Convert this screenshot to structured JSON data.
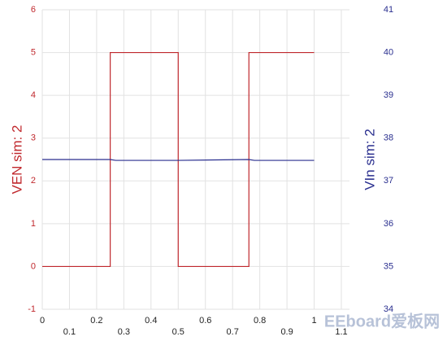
{
  "chart_data": {
    "type": "line",
    "x": [
      0,
      0.25,
      0.25,
      0.5,
      0.5,
      0.76,
      0.76,
      1.0
    ],
    "xlim": [
      0,
      1.1
    ],
    "xticks": [
      0,
      0.1,
      0.2,
      0.3,
      0.4,
      0.5,
      0.6,
      0.7,
      0.8,
      0.9,
      1,
      1.1
    ],
    "ylabel": "VEN sim:  2",
    "ylim": [
      -1,
      6
    ],
    "yticks": [
      -1,
      0,
      1,
      2,
      3,
      4,
      5,
      6
    ],
    "y2label": "VIn sim:  2",
    "y2lim": [
      34,
      41
    ],
    "y2ticks": [
      34,
      35,
      36,
      37,
      38,
      39,
      40,
      41
    ],
    "grid": true,
    "series": [
      {
        "name": "VEN sim:  2",
        "color": "#c0282d",
        "x": [
          0,
          0.25,
          0.25,
          0.5,
          0.5,
          0.76,
          0.76,
          1.0
        ],
        "values": [
          0,
          0,
          5,
          5,
          0,
          0,
          5,
          5
        ]
      },
      {
        "name": "VIn sim:  2",
        "color": "#2a2f8f",
        "axis": "y2",
        "x": [
          0,
          0.25,
          0.27,
          0.5,
          0.76,
          0.78,
          1.0
        ],
        "values": [
          37.5,
          37.5,
          37.48,
          37.48,
          37.5,
          37.48,
          37.48
        ]
      }
    ],
    "watermark": "EEboard爱板网"
  }
}
